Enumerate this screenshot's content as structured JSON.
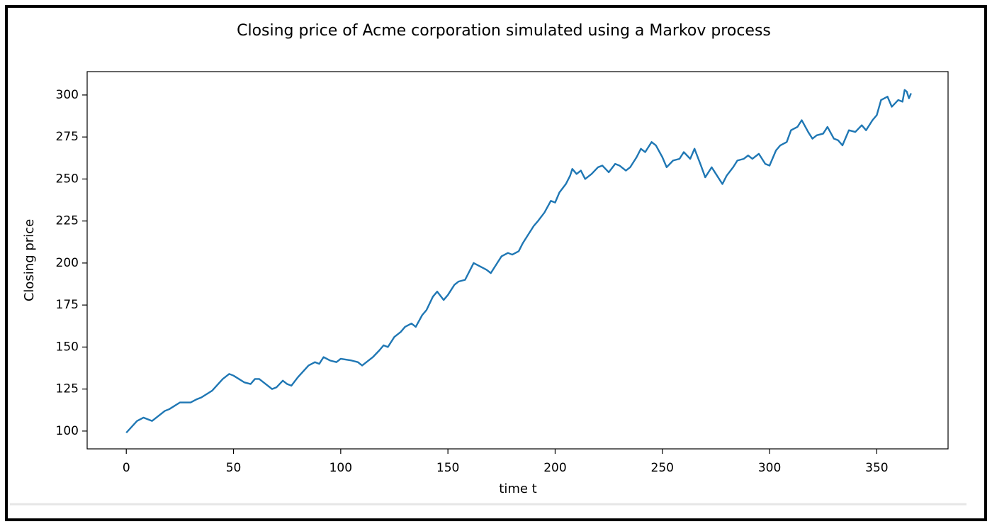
{
  "chart_data": {
    "type": "line",
    "title": "Closing price of Acme corporation simulated using a Markov process",
    "x_label": "time t",
    "y_label": "Closing price",
    "x": [
      0,
      5,
      8,
      10,
      12,
      15,
      18,
      20,
      25,
      28,
      30,
      33,
      35,
      40,
      45,
      48,
      50,
      55,
      58,
      60,
      62,
      65,
      68,
      70,
      73,
      75,
      77,
      80,
      85,
      88,
      90,
      92,
      95,
      98,
      100,
      105,
      108,
      110,
      113,
      115,
      118,
      120,
      122,
      125,
      128,
      130,
      133,
      135,
      138,
      140,
      143,
      145,
      148,
      150,
      153,
      155,
      158,
      160,
      162,
      165,
      168,
      170,
      173,
      175,
      178,
      180,
      183,
      185,
      188,
      190,
      192,
      195,
      198,
      200,
      202,
      205,
      207,
      208,
      210,
      212,
      214,
      217,
      220,
      222,
      225,
      228,
      230,
      233,
      235,
      238,
      240,
      242,
      245,
      247,
      250,
      252,
      255,
      258,
      260,
      263,
      265,
      268,
      270,
      273,
      275,
      278,
      280,
      283,
      285,
      288,
      290,
      292,
      295,
      298,
      300,
      303,
      305,
      308,
      310,
      313,
      315,
      318,
      320,
      322,
      325,
      327,
      330,
      332,
      334,
      337,
      340,
      343,
      345,
      348,
      350,
      352,
      355,
      357,
      360,
      362,
      363,
      364,
      365,
      366
    ],
    "series": [
      {
        "name": "Closing price",
        "color": "#1f77b4",
        "values": [
          99,
          106,
          108,
          107,
          106,
          109,
          112,
          113,
          117,
          117,
          117,
          119,
          120,
          124,
          131,
          134,
          133,
          129,
          128,
          131,
          131,
          128,
          125,
          126,
          130,
          128,
          127,
          132,
          139,
          141,
          140,
          144,
          142,
          141,
          143,
          142,
          141,
          139,
          142,
          144,
          148,
          151,
          150,
          156,
          159,
          162,
          164,
          162,
          169,
          172,
          180,
          183,
          178,
          181,
          187,
          189,
          190,
          195,
          200,
          198,
          196,
          194,
          200,
          204,
          206,
          205,
          207,
          212,
          218,
          222,
          225,
          230,
          237,
          236,
          242,
          247,
          252,
          256,
          253,
          255,
          250,
          253,
          257,
          258,
          254,
          259,
          258,
          255,
          257,
          263,
          268,
          266,
          272,
          270,
          263,
          257,
          261,
          262,
          266,
          262,
          268,
          258,
          251,
          257,
          253,
          247,
          252,
          257,
          261,
          262,
          264,
          262,
          265,
          259,
          258,
          267,
          270,
          272,
          279,
          281,
          285,
          278,
          274,
          276,
          277,
          281,
          274,
          273,
          270,
          279,
          278,
          282,
          279,
          285,
          288,
          297,
          299,
          293,
          297,
          296,
          303,
          302,
          298,
          301
        ]
      }
    ],
    "xlim": [
      -18.25,
      383.25
    ],
    "ylim": [
      89.4,
      313.9
    ],
    "xticks": [
      0,
      50,
      100,
      150,
      200,
      250,
      300,
      350
    ],
    "yticks": [
      100,
      125,
      150,
      175,
      200,
      225,
      250,
      275,
      300
    ],
    "grid": false
  }
}
